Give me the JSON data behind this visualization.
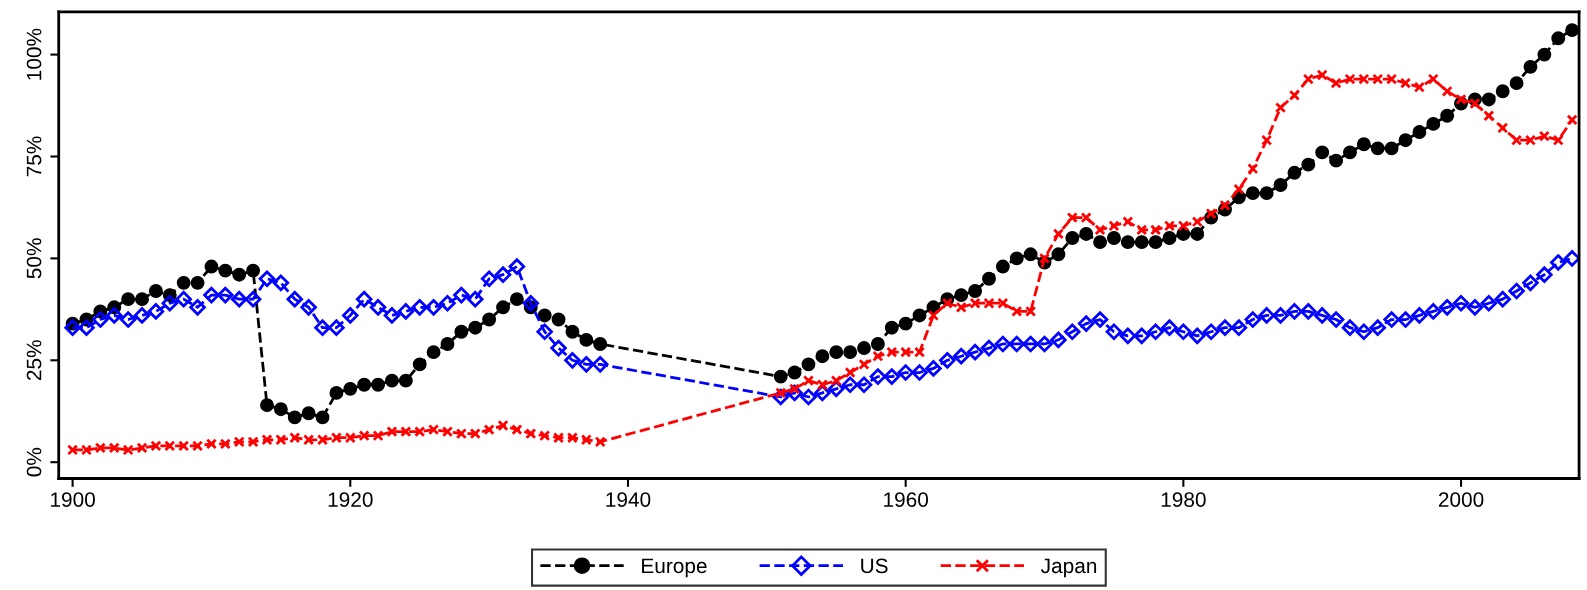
{
  "chart_data": {
    "type": "line",
    "x": [
      1900,
      1901,
      1902,
      1903,
      1904,
      1905,
      1906,
      1907,
      1908,
      1909,
      1910,
      1911,
      1912,
      1913,
      1914,
      1915,
      1916,
      1917,
      1918,
      1919,
      1920,
      1921,
      1922,
      1923,
      1924,
      1925,
      1926,
      1927,
      1928,
      1929,
      1930,
      1931,
      1932,
      1933,
      1934,
      1935,
      1936,
      1937,
      1938,
      1951,
      1952,
      1953,
      1954,
      1955,
      1956,
      1957,
      1958,
      1959,
      1960,
      1961,
      1962,
      1963,
      1964,
      1965,
      1966,
      1967,
      1968,
      1969,
      1970,
      1971,
      1972,
      1973,
      1974,
      1975,
      1976,
      1977,
      1978,
      1979,
      1980,
      1981,
      1982,
      1983,
      1984,
      1985,
      1986,
      1987,
      1988,
      1989,
      1990,
      1991,
      1992,
      1993,
      1994,
      1995,
      1996,
      1997,
      1998,
      1999,
      2000,
      2001,
      2002,
      2003,
      2004,
      2005,
      2006,
      2007,
      2008
    ],
    "series": [
      {
        "name": "Europe",
        "color": "#000000",
        "marker": "circle",
        "values": [
          34,
          35,
          37,
          38,
          40,
          40,
          42,
          41,
          44,
          44,
          48,
          47,
          46,
          47,
          14,
          13,
          11,
          12,
          11,
          17,
          18,
          19,
          19,
          20,
          20,
          24,
          27,
          29,
          32,
          33,
          35,
          38,
          40,
          38,
          36,
          35,
          32,
          30,
          29,
          21,
          22,
          24,
          26,
          27,
          27,
          28,
          29,
          33,
          34,
          36,
          38,
          40,
          41,
          42,
          45,
          48,
          50,
          51,
          49,
          51,
          55,
          56,
          54,
          55,
          54,
          54,
          54,
          55,
          56,
          56,
          60,
          62,
          65,
          66,
          66,
          68,
          71,
          73,
          76,
          74,
          76,
          78,
          77,
          77,
          79,
          81,
          83,
          85,
          88,
          89,
          89,
          91,
          93,
          97,
          100,
          104,
          106
        ]
      },
      {
        "name": "US",
        "color": "#0000ff",
        "marker": "diamond",
        "values": [
          33,
          33,
          35,
          36,
          35,
          36,
          37,
          39,
          40,
          38,
          41,
          41,
          40,
          40,
          45,
          44,
          40,
          38,
          33,
          33,
          36,
          40,
          38,
          36,
          37,
          38,
          38,
          39,
          41,
          40,
          45,
          46,
          48,
          39,
          32,
          28,
          25,
          24,
          24,
          16,
          17,
          16,
          17,
          18,
          19,
          19,
          21,
          21,
          22,
          22,
          23,
          25,
          26,
          27,
          28,
          29,
          29,
          29,
          29,
          30,
          32,
          34,
          35,
          32,
          31,
          31,
          32,
          33,
          32,
          31,
          32,
          33,
          33,
          35,
          36,
          36,
          37,
          37,
          36,
          35,
          33,
          32,
          33,
          35,
          35,
          36,
          37,
          38,
          39,
          38,
          39,
          40,
          42,
          44,
          46,
          49,
          50
        ]
      },
      {
        "name": "Japan",
        "color": "#ff0000",
        "marker": "cross",
        "values": [
          3,
          3,
          3.5,
          3.5,
          3,
          3.5,
          4,
          4,
          4,
          4,
          4.5,
          4.5,
          5,
          5,
          5.5,
          5.5,
          6,
          5.5,
          5.5,
          6,
          6,
          6.5,
          6.5,
          7.5,
          7.5,
          7.5,
          8,
          7.5,
          7,
          7,
          8,
          9,
          8,
          7,
          6.5,
          6,
          6,
          5.5,
          5,
          17,
          18,
          20,
          19,
          20,
          22,
          24,
          26,
          27,
          27,
          27,
          36,
          39,
          38,
          39,
          39,
          39,
          37,
          37,
          50,
          56,
          60,
          60,
          57,
          58,
          59,
          57,
          57,
          58,
          58,
          59,
          61,
          63,
          67,
          72,
          79,
          87,
          90,
          94,
          95,
          93,
          94,
          94,
          94,
          94,
          93,
          92,
          94,
          91,
          89,
          88,
          85,
          82,
          79,
          79,
          80,
          79,
          84
        ]
      }
    ],
    "xlim": [
      1899,
      2008.5
    ],
    "xticks": [
      1900,
      1920,
      1940,
      1960,
      1980,
      2000
    ],
    "ylim": [
      -4,
      110.5
    ],
    "yticks": [
      {
        "value": 0,
        "label": "0%"
      },
      {
        "value": 25,
        "label": "25%"
      },
      {
        "value": 50,
        "label": "50%"
      },
      {
        "value": 75,
        "label": "75%"
      },
      {
        "value": 100,
        "label": "100%"
      }
    ],
    "line_style": "dashed",
    "grid": false,
    "legend": "bottom"
  }
}
